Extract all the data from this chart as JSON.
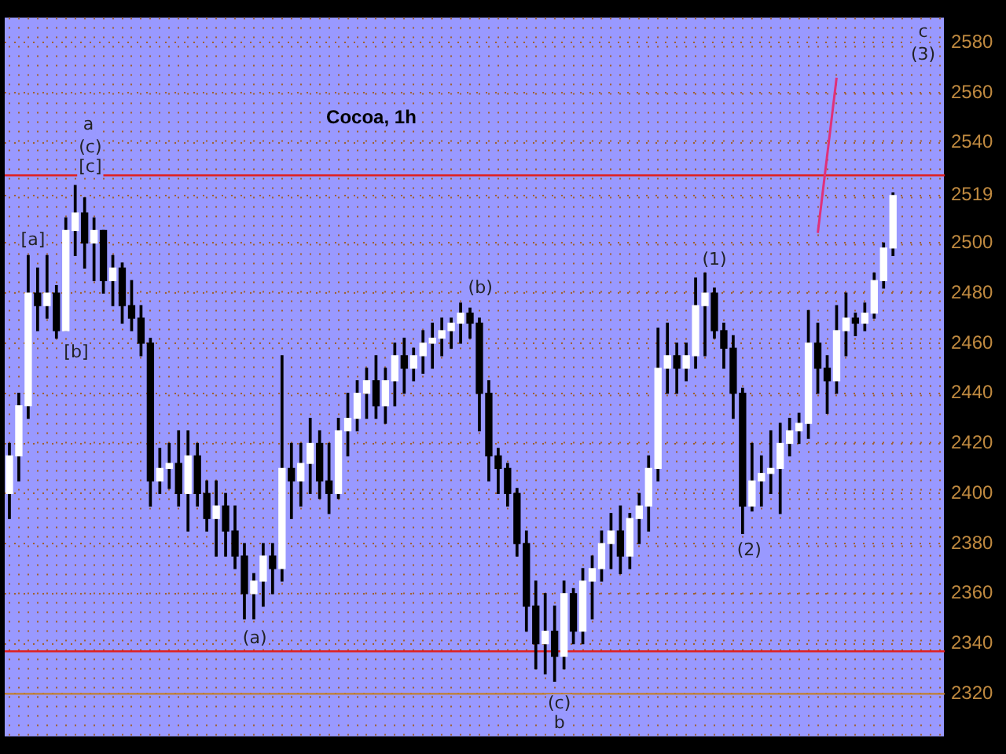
{
  "chart_data": {
    "type": "candlestick",
    "title": "Cocoa, 1h",
    "color": "#000000",
    "colors": [
      "#ffffff",
      "#ffffff",
      "#ffffff",
      "#000000",
      "#ffffff",
      "#000000",
      "#ffffff",
      "#ffffff",
      "#000000",
      "#ffffff",
      "#000000",
      "#ffffff",
      "#000000",
      "#000000",
      "#000000",
      "#000000",
      "#ffffff",
      "#ffffff",
      "#000000",
      "#ffffff",
      "#000000",
      "#000000",
      "#ffffff",
      "#000000",
      "#000000",
      "#000000",
      "#ffffff",
      "#ffffff",
      "#000000",
      "#ffffff",
      "#000000",
      "#ffffff",
      "#ffffff",
      "#000000",
      "#000000",
      "#ffffff",
      "#ffffff",
      "#ffffff",
      "#ffffff",
      "#000000",
      "#ffffff",
      "#ffffff",
      "#000000",
      "#ffffff",
      "#ffffff",
      "#ffffff",
      "#ffffff",
      "#ffffff",
      "#ffffff",
      "#000000",
      "#000000",
      "#000000",
      "#000000",
      "#000000",
      "#000000",
      "#000000",
      "#000000",
      "#ffffff",
      "#000000",
      "#ffffff",
      "#000000",
      "#ffffff",
      "#ffffff",
      "#ffffff",
      "#ffffff",
      "#000000",
      "#ffffff",
      "#ffffff",
      "#ffffff",
      "#ffffff",
      "#ffffff",
      "#000000",
      "#ffffff",
      "#ffffff",
      "#ffffff",
      "#000000",
      "#000000",
      "#000000",
      "#000000",
      "#ffffff",
      "#ffffff",
      "#ffffff",
      "#ffffff",
      "#ffffff",
      "#ffffff",
      "#ffffff",
      "#000000",
      "#000000",
      "#ffffff",
      "#ffffff",
      "#000000",
      "#ffffff",
      "#ffffff",
      "#ffffff",
      "#ffffff",
      null,
      null,
      null,
      null,
      null
    ],
    "categories": [
      null,
      null,
      null,
      null,
      null,
      null,
      null,
      null,
      null,
      null,
      null,
      null,
      null,
      null,
      null,
      null,
      null,
      null,
      null,
      null,
      null,
      null,
      null,
      null,
      null,
      null,
      null,
      null,
      null,
      null,
      null,
      null,
      null,
      null,
      null,
      null,
      null,
      null,
      null,
      null,
      null,
      null,
      null,
      null,
      null,
      null,
      null,
      null,
      null,
      null,
      null,
      null,
      null,
      null,
      null,
      null,
      null,
      null,
      null,
      null,
      null,
      null,
      null,
      null,
      null,
      null,
      null,
      null,
      null,
      null,
      null,
      null,
      null,
      null,
      null,
      null,
      null,
      null,
      null,
      null,
      null,
      null,
      null,
      null,
      null,
      null,
      null,
      null,
      null,
      null,
      null,
      null,
      null,
      null,
      null,
      null,
      null,
      null,
      null,
      null
    ],
    "ohlc": [
      [
        2400,
        2420,
        2390,
        2415
      ],
      [
        2415,
        2440,
        2405,
        2435
      ],
      [
        2435,
        2495,
        2430,
        2480
      ],
      [
        2480,
        2490,
        2465,
        2475
      ],
      [
        2475,
        2495,
        2470,
        2480
      ],
      [
        2480,
        2483,
        2462,
        2465
      ],
      [
        2465,
        2510,
        2465,
        2505
      ],
      [
        2505,
        2523,
        2495,
        2512
      ],
      [
        2512,
        2518,
        2490,
        2500
      ],
      [
        2500,
        2510,
        2485,
        2505
      ],
      [
        2505,
        2505,
        2480,
        2485
      ],
      [
        2485,
        2495,
        2475,
        2490
      ],
      [
        2490,
        2492,
        2468,
        2475
      ],
      [
        2475,
        2485,
        2465,
        2470
      ],
      [
        2470,
        2475,
        2455,
        2460
      ],
      [
        2460,
        2462,
        2395,
        2405
      ],
      [
        2405,
        2418,
        2400,
        2410
      ],
      [
        2410,
        2420,
        2402,
        2412
      ],
      [
        2412,
        2425,
        2395,
        2400
      ],
      [
        2400,
        2425,
        2385,
        2415
      ],
      [
        2415,
        2420,
        2395,
        2400
      ],
      [
        2400,
        2405,
        2385,
        2390
      ],
      [
        2390,
        2405,
        2375,
        2395
      ],
      [
        2395,
        2400,
        2375,
        2385
      ],
      [
        2385,
        2395,
        2370,
        2375
      ],
      [
        2375,
        2380,
        2350,
        2360
      ],
      [
        2360,
        2368,
        2350,
        2365
      ],
      [
        2365,
        2380,
        2355,
        2375
      ],
      [
        2375,
        2380,
        2360,
        2370
      ],
      [
        2370,
        2455,
        2365,
        2410
      ],
      [
        2410,
        2420,
        2390,
        2405
      ],
      [
        2405,
        2420,
        2395,
        2412
      ],
      [
        2412,
        2430,
        2400,
        2420
      ],
      [
        2420,
        2425,
        2398,
        2405
      ],
      [
        2405,
        2420,
        2392,
        2400
      ],
      [
        2400,
        2430,
        2398,
        2425
      ],
      [
        2425,
        2440,
        2415,
        2430
      ],
      [
        2430,
        2445,
        2425,
        2440
      ],
      [
        2440,
        2450,
        2430,
        2445
      ],
      [
        2445,
        2455,
        2430,
        2435
      ],
      [
        2435,
        2450,
        2428,
        2445
      ],
      [
        2445,
        2460,
        2435,
        2455
      ],
      [
        2455,
        2462,
        2440,
        2450
      ],
      [
        2450,
        2458,
        2445,
        2455
      ],
      [
        2455,
        2465,
        2448,
        2460
      ],
      [
        2460,
        2468,
        2450,
        2462
      ],
      [
        2462,
        2470,
        2455,
        2465
      ],
      [
        2465,
        2470,
        2458,
        2468
      ],
      [
        2468,
        2476,
        2460,
        2472
      ],
      [
        2472,
        2474,
        2462,
        2468
      ],
      [
        2468,
        2470,
        2425,
        2440
      ],
      [
        2440,
        2445,
        2405,
        2415
      ],
      [
        2415,
        2418,
        2400,
        2410
      ],
      [
        2410,
        2412,
        2395,
        2400
      ],
      [
        2400,
        2402,
        2375,
        2380
      ],
      [
        2380,
        2385,
        2345,
        2355
      ],
      [
        2355,
        2365,
        2330,
        2340
      ],
      [
        2340,
        2360,
        2328,
        2345
      ],
      [
        2345,
        2355,
        2325,
        2335
      ],
      [
        2335,
        2365,
        2330,
        2360
      ],
      [
        2360,
        2362,
        2340,
        2345
      ],
      [
        2345,
        2370,
        2340,
        2365
      ],
      [
        2365,
        2375,
        2350,
        2370
      ],
      [
        2370,
        2385,
        2365,
        2380
      ],
      [
        2380,
        2392,
        2370,
        2385
      ],
      [
        2385,
        2395,
        2368,
        2375
      ],
      [
        2375,
        2392,
        2370,
        2390
      ],
      [
        2390,
        2400,
        2380,
        2395
      ],
      [
        2395,
        2415,
        2385,
        2410
      ],
      [
        2410,
        2466,
        2405,
        2450
      ],
      [
        2450,
        2468,
        2440,
        2455
      ],
      [
        2455,
        2460,
        2440,
        2450
      ],
      [
        2450,
        2460,
        2445,
        2455
      ],
      [
        2455,
        2486,
        2450,
        2475
      ],
      [
        2475,
        2488,
        2455,
        2480
      ],
      [
        2480,
        2482,
        2462,
        2465
      ],
      [
        2465,
        2468,
        2450,
        2458
      ],
      [
        2458,
        2463,
        2430,
        2440
      ],
      [
        2440,
        2442,
        2384,
        2395
      ],
      [
        2395,
        2420,
        2393,
        2405
      ],
      [
        2405,
        2415,
        2395,
        2408
      ],
      [
        2408,
        2425,
        2400,
        2410
      ],
      [
        2410,
        2428,
        2392,
        2420
      ],
      [
        2420,
        2430,
        2415,
        2425
      ],
      [
        2425,
        2432,
        2420,
        2428
      ],
      [
        2428,
        2473,
        2422,
        2460
      ],
      [
        2460,
        2468,
        2440,
        2450
      ],
      [
        2450,
        2455,
        2432,
        2445
      ],
      [
        2445,
        2475,
        2440,
        2465
      ],
      [
        2465,
        2480,
        2455,
        2470
      ],
      [
        2470,
        2472,
        2463,
        2468
      ],
      [
        2468,
        2476,
        2465,
        2472
      ],
      [
        2472,
        2488,
        2470,
        2485
      ],
      [
        2485,
        2500,
        2482,
        2498
      ],
      [
        2498,
        2520,
        2495,
        2519
      ],
      null,
      null,
      null,
      null,
      null
    ],
    "series": [
      {
        "type": "line",
        "color": "#e0307a",
        "values": [
          null,
          null,
          null,
          null,
          null,
          null,
          null,
          null,
          null,
          null,
          null,
          null,
          null,
          null,
          null,
          null,
          null,
          null,
          null,
          null,
          null,
          null,
          null,
          null,
          null,
          null,
          null,
          null,
          null,
          null,
          null,
          null,
          null,
          null,
          null,
          null,
          null,
          null,
          null,
          null,
          null,
          null,
          null,
          null,
          null,
          null,
          null,
          null,
          null,
          null,
          null,
          null,
          null,
          null,
          null,
          null,
          null,
          null,
          null,
          null,
          null,
          null,
          null,
          null,
          null,
          null,
          null,
          null,
          null,
          null,
          null,
          null,
          null,
          null,
          null,
          null,
          null,
          null,
          null,
          null,
          null,
          null,
          null,
          null,
          null,
          null,
          2504,
          null,
          2566,
          null,
          null,
          null,
          null,
          null,
          null,
          null,
          null,
          null,
          null,
          null
        ]
      }
    ],
    "ylim": [
      2303,
      2590
    ],
    "yticks": [
      2320,
      2340,
      2360,
      2380,
      2400,
      2420,
      2440,
      2460,
      2480,
      2500,
      2519,
      2540,
      2560,
      2580
    ],
    "tick_labels": "y",
    "grid": true,
    "legend": false,
    "ref_lines": [
      {
        "axis": "y",
        "value": 2527,
        "color": "#e02020"
      },
      {
        "axis": "y",
        "value": 2337,
        "color": "#e02020"
      },
      {
        "axis": "y",
        "value": 2320,
        "color": "#c08030"
      }
    ],
    "annotations": [
      {
        "text": "a",
        "y": 2547
      },
      {
        "text": "(c)",
        "y": 2538
      },
      {
        "text": "[c]",
        "y": 2530
      },
      {
        "text": "[a]",
        "y": 2501
      },
      {
        "text": "[b]",
        "y": 2456
      },
      {
        "text": "(a)",
        "y": 2342
      },
      {
        "text": "(b)",
        "y": 2482
      },
      {
        "text": "(c)",
        "y": 2316
      },
      {
        "text": "b",
        "y": 2308
      },
      {
        "text": "(1)",
        "y": 2493
      },
      {
        "text": "(2)",
        "y": 2377
      },
      {
        "text": "c",
        "y": 2584
      },
      {
        "text": "(3)",
        "y": 2575
      }
    ]
  }
}
